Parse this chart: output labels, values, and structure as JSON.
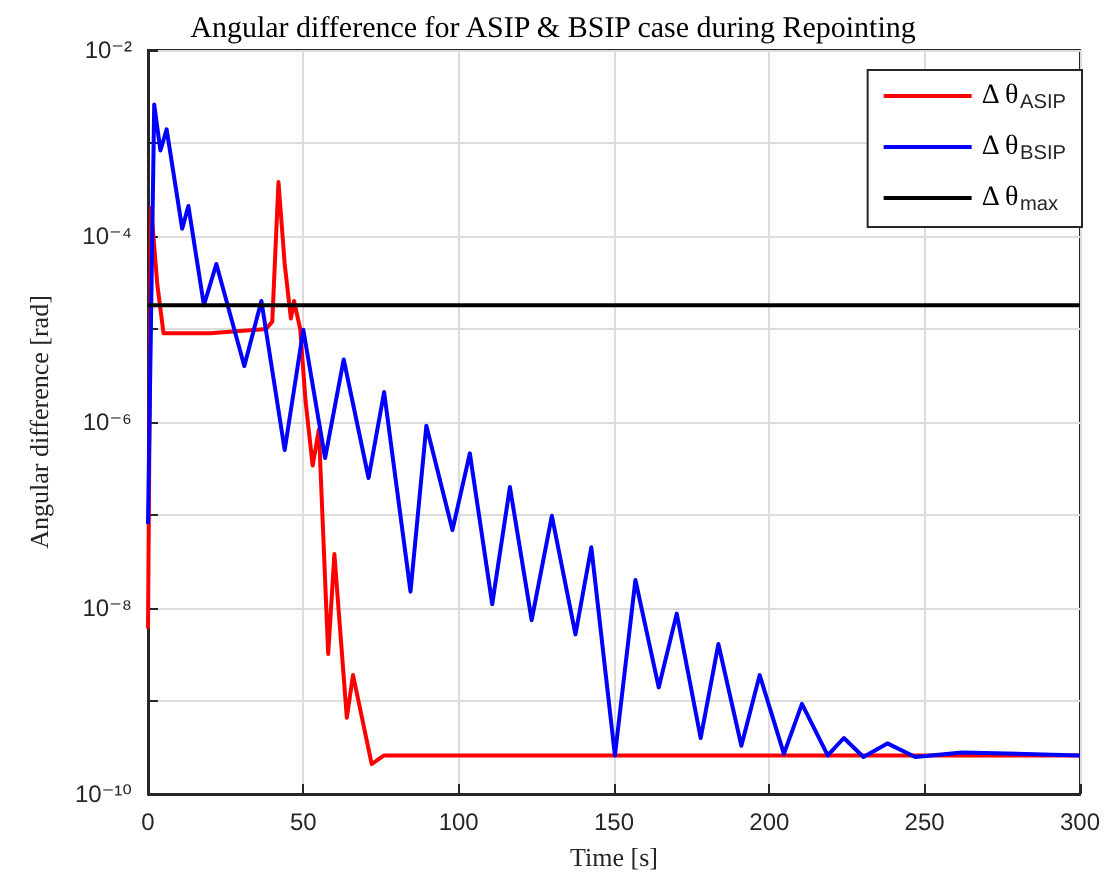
{
  "chart_data": {
    "type": "line",
    "title": "Angular difference for ASIP & BSIP case during Repointing",
    "xlabel": "Time [s]",
    "ylabel": "Angular difference [rad]",
    "log": "y",
    "grid": true,
    "legend": "top right",
    "marker": "none",
    "line_style": "solid",
    "xlim": [
      0,
      300
    ],
    "xticks": [
      0,
      50,
      100,
      150,
      200,
      250,
      300
    ],
    "ylim": [
      1e-10,
      0.01
    ],
    "yticks": [
      {
        "value": 1e-10,
        "label": "10⁻¹⁰"
      },
      {
        "value": 1e-09,
        "label": null
      },
      {
        "value": 1e-08,
        "label": "10⁻⁸"
      },
      {
        "value": 1e-07,
        "label": null
      },
      {
        "value": 1e-06,
        "label": "10⁻⁶"
      },
      {
        "value": 1e-05,
        "label": null
      },
      {
        "value": 0.0001,
        "label": "10⁻⁴"
      },
      {
        "value": 0.001,
        "label": null
      },
      {
        "value": 0.01,
        "label": "10⁻²"
      }
    ],
    "series": [
      {
        "name": "Δ θ$_{ASIP}$",
        "color": "#ff0000",
        "x": [
          0,
          1,
          3,
          5,
          20,
          38,
          40,
          42,
          44,
          46,
          47,
          49,
          50.7,
          53,
          55,
          58,
          60,
          64,
          66,
          72,
          76,
          300
        ],
        "values": [
          6e-09,
          0.0002,
          3e-05,
          9e-06,
          9e-06,
          1e-05,
          1.2e-05,
          0.00038,
          5e-05,
          1.3e-05,
          2e-05,
          1e-05,
          1.7e-06,
          3.4e-07,
          8.3e-07,
          3.2e-09,
          3.8e-08,
          6.6e-10,
          1.9e-09,
          2.1e-10,
          2.6e-10,
          2.6e-10
        ]
      },
      {
        "name": "Δ θ$_{BSIP}$",
        "color": "#0000ff",
        "x": [
          0,
          2,
          4,
          6,
          11,
          13,
          18,
          22,
          31,
          36.5,
          44,
          50,
          57,
          63,
          71,
          76,
          84.5,
          89.6,
          98,
          103.6,
          110.8,
          116.5,
          123.5,
          130,
          137.6,
          142.7,
          150.3,
          156.9,
          164.4,
          170.2,
          177.9,
          183.6,
          191,
          196.9,
          204.7,
          210.5,
          218.8,
          224,
          230.3,
          238,
          247,
          262,
          300
        ],
        "values": [
          8e-08,
          0.0026,
          0.00083,
          0.0014,
          0.00012,
          0.00021,
          1.8e-05,
          5e-05,
          4e-06,
          2e-05,
          5e-07,
          9.8e-06,
          4.1e-07,
          4.7e-06,
          2.5e-07,
          2.1e-06,
          1.5e-08,
          9.1e-07,
          6.9e-08,
          4.6e-07,
          1.1e-08,
          2e-07,
          7.4e-09,
          9.8e-08,
          5.2e-09,
          4.5e-08,
          2.6e-10,
          2e-08,
          1.4e-09,
          8.7e-09,
          4e-10,
          4.1e-09,
          3.3e-10,
          1.9e-09,
          2.7e-10,
          9.3e-10,
          2.6e-10,
          4e-10,
          2.5e-10,
          3.5e-10,
          2.5e-10,
          2.8e-10,
          2.6e-10
        ]
      },
      {
        "name": "Δ θ$_{max}$",
        "color": "#000000",
        "x": [
          0,
          300
        ],
        "values": [
          1.8e-05,
          1.8e-05
        ]
      }
    ]
  }
}
